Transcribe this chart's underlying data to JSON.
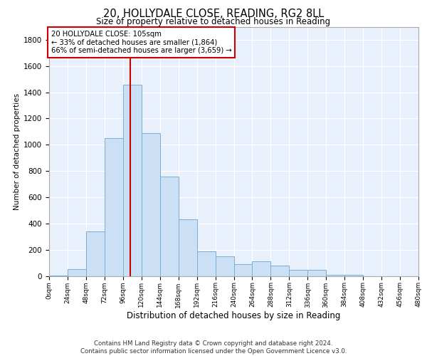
{
  "title": "20, HOLLYDALE CLOSE, READING, RG2 8LL",
  "subtitle": "Size of property relative to detached houses in Reading",
  "xlabel": "Distribution of detached houses by size in Reading",
  "ylabel": "Number of detached properties",
  "bar_color": "#cce0f5",
  "bar_edge_color": "#7bafd4",
  "background_color": "#ffffff",
  "plot_bg_color": "#e8f0fb",
  "grid_color": "#ffffff",
  "vline_x": 105,
  "vline_color": "#cc0000",
  "annotation_text": "20 HOLLYDALE CLOSE: 105sqm\n← 33% of detached houses are smaller (1,864)\n66% of semi-detached houses are larger (3,659) →",
  "annotation_box_color": "#ffffff",
  "annotation_box_edge": "#cc0000",
  "footnote": "Contains HM Land Registry data © Crown copyright and database right 2024.\nContains public sector information licensed under the Open Government Licence v3.0.",
  "bin_edges": [
    0,
    24,
    48,
    72,
    96,
    120,
    144,
    168,
    192,
    216,
    240,
    264,
    288,
    312,
    336,
    360,
    384,
    408,
    432,
    456,
    480
  ],
  "bar_heights": [
    5,
    50,
    340,
    1050,
    1460,
    1090,
    760,
    430,
    190,
    150,
    90,
    110,
    80,
    45,
    45,
    10,
    10,
    0,
    0,
    0
  ],
  "ylim": [
    0,
    1900
  ],
  "xlim": [
    0,
    480
  ],
  "yticks": [
    0,
    200,
    400,
    600,
    800,
    1000,
    1200,
    1400,
    1600,
    1800
  ],
  "xtick_labels": [
    "0sqm",
    "24sqm",
    "48sqm",
    "72sqm",
    "96sqm",
    "120sqm",
    "144sqm",
    "168sqm",
    "192sqm",
    "216sqm",
    "240sqm",
    "264sqm",
    "288sqm",
    "312sqm",
    "336sqm",
    "360sqm",
    "384sqm",
    "408sqm",
    "432sqm",
    "456sqm",
    "480sqm"
  ]
}
